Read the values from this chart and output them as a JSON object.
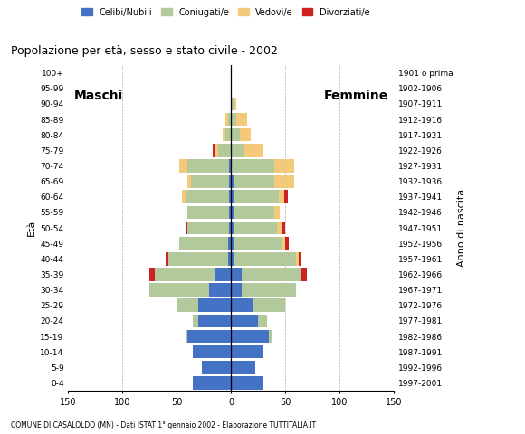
{
  "age_groups": [
    "0-4",
    "5-9",
    "10-14",
    "15-19",
    "20-24",
    "25-29",
    "30-34",
    "35-39",
    "40-44",
    "45-49",
    "50-54",
    "55-59",
    "60-64",
    "65-69",
    "70-74",
    "75-79",
    "80-84",
    "85-89",
    "90-94",
    "95-99",
    "100+"
  ],
  "birth_years": [
    "1997-2001",
    "1992-1996",
    "1987-1991",
    "1982-1986",
    "1977-1981",
    "1972-1976",
    "1967-1971",
    "1962-1966",
    "1957-1961",
    "1952-1956",
    "1947-1951",
    "1942-1946",
    "1937-1941",
    "1932-1936",
    "1927-1931",
    "1922-1926",
    "1917-1921",
    "1912-1916",
    "1907-1911",
    "1902-1906",
    "1901 o prima"
  ],
  "male_celibe": [
    35,
    27,
    35,
    40,
    30,
    30,
    20,
    15,
    3,
    3,
    2,
    2,
    2,
    2,
    2,
    0,
    0,
    0,
    0,
    0,
    0
  ],
  "male_coniugato": [
    0,
    0,
    0,
    2,
    5,
    20,
    55,
    55,
    55,
    45,
    38,
    38,
    40,
    35,
    38,
    12,
    5,
    3,
    0,
    0,
    0
  ],
  "male_vedovo": [
    0,
    0,
    0,
    0,
    0,
    0,
    0,
    0,
    0,
    0,
    0,
    0,
    3,
    3,
    8,
    3,
    3,
    2,
    0,
    0,
    0
  ],
  "male_divorziato": [
    0,
    0,
    0,
    0,
    0,
    0,
    0,
    5,
    2,
    0,
    2,
    0,
    0,
    0,
    0,
    2,
    0,
    0,
    0,
    0,
    0
  ],
  "fem_nubile": [
    30,
    22,
    30,
    35,
    25,
    20,
    10,
    10,
    2,
    2,
    2,
    2,
    2,
    2,
    0,
    0,
    0,
    0,
    0,
    0,
    0
  ],
  "fem_coniugata": [
    0,
    0,
    0,
    2,
    8,
    30,
    50,
    55,
    58,
    45,
    40,
    38,
    42,
    38,
    40,
    12,
    8,
    5,
    2,
    0,
    0
  ],
  "fem_vedova": [
    0,
    0,
    0,
    0,
    0,
    0,
    0,
    0,
    2,
    3,
    5,
    5,
    5,
    18,
    18,
    18,
    10,
    10,
    3,
    0,
    0
  ],
  "fem_divorziata": [
    0,
    0,
    0,
    0,
    0,
    0,
    0,
    5,
    3,
    3,
    3,
    0,
    3,
    0,
    0,
    0,
    0,
    0,
    0,
    0,
    0
  ],
  "colors": {
    "celibe": "#4472c4",
    "coniugato": "#b2c99b",
    "vedovo": "#f5c97a",
    "divorziato": "#cc2222"
  },
  "xlim": 150,
  "title": "Popolazione per età, sesso e stato civile - 2002",
  "subtitle": "COMUNE DI CASALOLDO (MN) - Dati ISTAT 1° gennaio 2002 - Elaborazione TUTTITALIA.IT",
  "ylabel_left": "Età",
  "ylabel_right": "Anno di nascita",
  "label_maschi": "Maschi",
  "label_femmine": "Femmine",
  "legend_labels": [
    "Celibi/Nubili",
    "Coniugati/e",
    "Vedovi/e",
    "Divorziati/e"
  ],
  "background_color": "#ffffff",
  "bar_height": 0.85
}
